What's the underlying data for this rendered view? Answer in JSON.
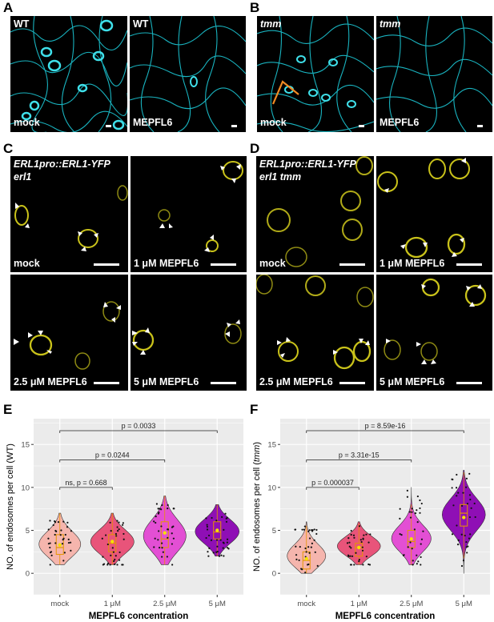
{
  "panels": {
    "A": {
      "label": "A",
      "left_title": "WT",
      "right_title": "WT",
      "left_treat": "mock",
      "right_treat": "MEPFL6"
    },
    "B": {
      "label": "B",
      "left_title": "tmm",
      "right_title": "tmm",
      "left_treat": "mock",
      "right_treat": "MEPFL6"
    },
    "C": {
      "label": "C",
      "title_line1": "ERL1pro::ERL1-YFP",
      "title_line2": "erl1",
      "treatments": [
        "mock",
        "1 μM MEPFL6",
        "2.5 μM MEPFL6",
        "5 μM MEPFL6"
      ]
    },
    "D": {
      "label": "D",
      "title_line1": "ERL1pro::ERL1-YFP",
      "title_line2": "erl1 tmm",
      "treatments": [
        "mock",
        "1 μM MEPFL6",
        "2.5 μM MEPFL6",
        "5 μM MEPFL6"
      ]
    },
    "E": {
      "label": "E"
    },
    "F": {
      "label": "F"
    }
  },
  "colors": {
    "cyan": "#19b3bf",
    "yellow": "#c9c21a",
    "mock": "#f5b5ad",
    "c1": "#e8547a",
    "c2_5": "#e34fd4",
    "c5": "#8f0fb5",
    "panel_bg": "#000000",
    "plot_bg": "#ebebeb"
  },
  "chart_data": [
    {
      "type": "violin",
      "ylabel": "NO. of endosomes per cell (WT)",
      "xlabel": "MEPFL6 concentration",
      "categories": [
        "mock",
        "1 μM",
        "2.5 μM",
        "5 μM"
      ],
      "ylim": [
        -2.5,
        18
      ],
      "yticks": [
        0,
        5,
        10,
        15
      ],
      "series": [
        {
          "category": "mock",
          "median": 3,
          "q1": 2.2,
          "q3": 4.5,
          "min": 1,
          "max": 7,
          "mean": 3.3
        },
        {
          "category": "1 μM",
          "median": 3.5,
          "q1": 2.5,
          "q3": 4.5,
          "min": 1,
          "max": 7,
          "mean": 3.7
        },
        {
          "category": "2.5 μM",
          "median": 4,
          "q1": 3,
          "q3": 6,
          "min": 1,
          "max": 9,
          "mean": 4.7
        },
        {
          "category": "5 μM",
          "median": 4.8,
          "q1": 4,
          "q3": 6,
          "min": 2,
          "max": 8,
          "mean": 5
        }
      ],
      "comparisons": [
        {
          "from": "mock",
          "to": "1 μM",
          "label": "ns, p = 0.668"
        },
        {
          "from": "mock",
          "to": "2.5 μM",
          "label": "p = 0.0244"
        },
        {
          "from": "mock",
          "to": "5 μM",
          "label": "p = 0.0033"
        }
      ]
    },
    {
      "type": "violin",
      "ylabel": "NO. of endosomes per cell (tmm)",
      "ylabel_prefix": "NO. of endosomes per cell (",
      "ylabel_italic": "tmm",
      "ylabel_suffix": ")",
      "xlabel": "MEPFL6 concentration",
      "categories": [
        "mock",
        "1 μM",
        "2.5 μM",
        "5 μM"
      ],
      "ylim": [
        -2.5,
        18
      ],
      "yticks": [
        0,
        5,
        10,
        15
      ],
      "series": [
        {
          "category": "mock",
          "median": 1.5,
          "q1": 0.5,
          "q3": 2.5,
          "min": 0,
          "max": 6,
          "mean": 1.7
        },
        {
          "category": "1 μM",
          "median": 3,
          "q1": 2,
          "q3": 3.5,
          "min": 1,
          "max": 6,
          "mean": 3
        },
        {
          "category": "2.5 μM",
          "median": 3.7,
          "q1": 3,
          "q3": 5,
          "min": 1,
          "max": 10,
          "mean": 4
        },
        {
          "category": "5 μM",
          "median": 7,
          "q1": 5.5,
          "q3": 8,
          "min": 0,
          "max": 12,
          "mean": 6.5
        }
      ],
      "comparisons": [
        {
          "from": "mock",
          "to": "1 μM",
          "label": "p = 0.000037"
        },
        {
          "from": "mock",
          "to": "2.5 μM",
          "label": "p = 3.31e-15"
        },
        {
          "from": "mock",
          "to": "5 μM",
          "label": "p = 8.59e-16"
        }
      ]
    }
  ]
}
